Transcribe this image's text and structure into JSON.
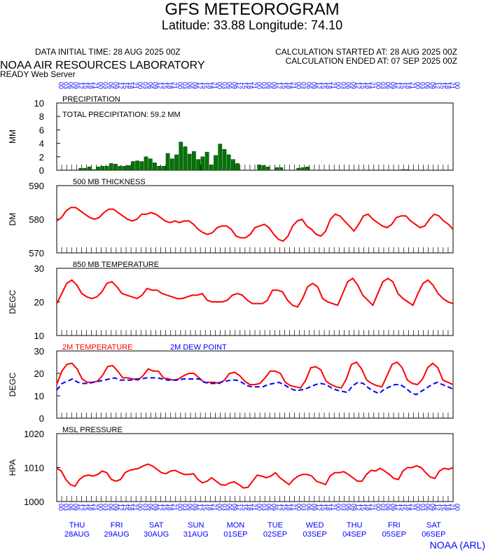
{
  "header": {
    "title": "GFS METEOROGRAM",
    "subtitle": "Latitude: 33.88 Longitude:  74.10",
    "initial_time": "DATA INITIAL TIME: 28 AUG 2025 00Z",
    "calc_started": "CALCULATION STARTED AT: 28 AUG 2025 00Z",
    "calc_ended": "CALCULATION ENDED AT: 07 SEP 2025 00Z",
    "lab": "NOAA AIR RESOURCES LABORATORY",
    "server": "READY Web Server"
  },
  "footer": {
    "credit": "NOAA (ARL)"
  },
  "colors": {
    "red": "#ff0000",
    "blue": "#0000ff",
    "green": "#007700",
    "axis": "#000000"
  },
  "x_axis": {
    "hours": [
      "00",
      "03",
      "06",
      "09",
      "12",
      "15",
      "18",
      "21"
    ],
    "days": [
      {
        "dow": "THU",
        "date": "28AUG"
      },
      {
        "dow": "FRI",
        "date": "29AUG"
      },
      {
        "dow": "SAT",
        "date": "30AUG"
      },
      {
        "dow": "SUN",
        "date": "31AUG"
      },
      {
        "dow": "MON",
        "date": "01SEP"
      },
      {
        "dow": "TUE",
        "date": "02SEP"
      },
      {
        "dow": "WED",
        "date": "03SEP"
      },
      {
        "dow": "THU",
        "date": "04SEP"
      },
      {
        "dow": "FRI",
        "date": "05SEP"
      },
      {
        "dow": "SAT",
        "date": "06SEP"
      }
    ]
  },
  "chart_data": [
    {
      "type": "bar",
      "title": "PRECIPITATION",
      "annotation": "TOTAL PRECIPITATION:  59.2 MM",
      "ylabel": "MM",
      "ylim": [
        0,
        10
      ],
      "yticks": [
        0,
        2,
        4,
        6,
        8,
        10
      ],
      "series": [
        {
          "name": "precipitation",
          "color": "#007700",
          "values": [
            0,
            0,
            0,
            0,
            0,
            0.3,
            0.3,
            0.5,
            0.1,
            0.5,
            0.6,
            0.6,
            1.0,
            0.9,
            0.6,
            0.6,
            0.7,
            1.3,
            1.4,
            1.3,
            2.0,
            1.7,
            1.1,
            0.6,
            0.6,
            2.5,
            1.7,
            2.3,
            4.2,
            3.5,
            2.4,
            2.8,
            1.6,
            2.0,
            2.7,
            0.8,
            2.2,
            3.9,
            3.1,
            2.3,
            1.6,
            1.0,
            0,
            0,
            0,
            0,
            0.8,
            0.7,
            0.5,
            0,
            0.4,
            0.4,
            0,
            0,
            0,
            0.3,
            0.4,
            0.5,
            0,
            0,
            0,
            0,
            0,
            0,
            0,
            0,
            0,
            0,
            0,
            0,
            0,
            0,
            0,
            0,
            0,
            0,
            0,
            0,
            0,
            0.1,
            0.1,
            0,
            0,
            0,
            0,
            0,
            0,
            0,
            0,
            0,
            0
          ]
        }
      ]
    },
    {
      "type": "line",
      "title": "500 MB  THICKNESS",
      "ylabel": "DM",
      "ylim": [
        570,
        590
      ],
      "yticks": [
        570,
        580,
        590
      ],
      "series": [
        {
          "name": "500 MB THICKNESS",
          "color": "#ff0000",
          "values": [
            579.5,
            580.5,
            582.5,
            583.5,
            583.5,
            582.5,
            581.5,
            580.5,
            580.0,
            580.5,
            582.0,
            583.0,
            583.0,
            582.0,
            581.0,
            580.0,
            579.5,
            580.0,
            581.5,
            581.5,
            582.0,
            581.5,
            580.5,
            579.5,
            579.0,
            579.5,
            579.0,
            579.5,
            579.5,
            578.5,
            577.0,
            576.0,
            575.5,
            576.0,
            577.5,
            578.0,
            578.0,
            577.0,
            575.0,
            574.5,
            574.5,
            575.5,
            577.5,
            578.0,
            578.5,
            577.5,
            575.5,
            574.0,
            573.5,
            575.0,
            578.0,
            579.5,
            580.0,
            578.0,
            577.0,
            575.5,
            575.0,
            576.5,
            580.0,
            581.5,
            581.0,
            579.5,
            578.0,
            576.5,
            578.5,
            581.0,
            581.5,
            580.0,
            579.0,
            578.0,
            577.5,
            578.5,
            580.5,
            581.0,
            581.0,
            579.5,
            578.5,
            577.5,
            578.0,
            580.0,
            581.5,
            581.0,
            579.5,
            578.5,
            577.0
          ]
        }
      ]
    },
    {
      "type": "line",
      "title": "850 MB  TEMPERATURE",
      "ylabel": "DEGC",
      "ylim": [
        10,
        30
      ],
      "yticks": [
        10,
        20,
        30
      ],
      "series": [
        {
          "name": "850 MB TEMPERATURE",
          "color": "#ff0000",
          "values": [
            19.5,
            22.5,
            25.5,
            26.5,
            25.0,
            22.5,
            21.5,
            21.0,
            21.5,
            23.0,
            25.5,
            26.0,
            24.5,
            22.5,
            22.0,
            21.5,
            21.0,
            22.0,
            24.0,
            23.5,
            23.5,
            22.5,
            22.0,
            21.5,
            21.0,
            21.0,
            21.5,
            22.0,
            22.0,
            22.5,
            20.5,
            20.0,
            20.0,
            20.0,
            20.5,
            22.0,
            22.5,
            22.0,
            20.5,
            19.5,
            19.5,
            19.5,
            20.5,
            23.5,
            23.5,
            23.0,
            20.5,
            19.0,
            18.5,
            21.0,
            24.5,
            25.5,
            24.5,
            21.0,
            20.0,
            19.5,
            19.0,
            22.5,
            26.0,
            27.0,
            25.0,
            22.0,
            20.5,
            19.0,
            22.5,
            26.0,
            27.0,
            26.0,
            22.5,
            21.0,
            20.0,
            19.0,
            22.5,
            25.5,
            26.5,
            25.0,
            22.5,
            21.0,
            20.0,
            19.5
          ]
        }
      ]
    },
    {
      "type": "line",
      "ylabel": "DEGC",
      "ylim": [
        0,
        30
      ],
      "yticks": [
        0,
        10,
        20,
        30
      ],
      "series": [
        {
          "name": "2M TEMPERATURE",
          "color": "#ff0000",
          "dash": false,
          "values": [
            15.0,
            21.0,
            24.0,
            24.5,
            22.0,
            17.5,
            16.0,
            16.0,
            16.5,
            19.0,
            23.0,
            23.5,
            21.0,
            18.0,
            18.0,
            17.5,
            17.0,
            19.0,
            22.0,
            21.0,
            21.0,
            18.0,
            17.5,
            17.0,
            17.5,
            19.0,
            20.0,
            20.0,
            18.0,
            16.0,
            16.0,
            16.0,
            15.5,
            17.0,
            20.0,
            20.5,
            19.0,
            16.5,
            15.0,
            15.0,
            15.5,
            18.0,
            21.0,
            21.0,
            20.0,
            16.0,
            14.5,
            14.0,
            13.5,
            17.0,
            22.5,
            23.0,
            21.5,
            16.5,
            15.0,
            14.0,
            13.5,
            17.5,
            24.0,
            25.0,
            22.0,
            17.0,
            15.5,
            14.5,
            14.0,
            19.0,
            24.0,
            25.0,
            22.5,
            17.0,
            15.5,
            15.0,
            17.5,
            22.5,
            24.5,
            22.5,
            17.0,
            16.0,
            15.0
          ]
        },
        {
          "name": "2M  DEW POINT",
          "color": "#0000ff",
          "dash": true,
          "values": [
            12.5,
            15.5,
            16.5,
            17.5,
            16.0,
            15.5,
            15.5,
            16.0,
            16.5,
            17.0,
            17.5,
            18.0,
            17.0,
            17.0,
            17.0,
            17.5,
            17.5,
            18.0,
            18.0,
            18.0,
            17.5,
            17.0,
            17.0,
            17.0,
            17.5,
            17.5,
            17.5,
            17.5,
            16.0,
            15.5,
            15.5,
            16.0,
            16.5,
            17.0,
            17.0,
            16.0,
            14.5,
            14.0,
            14.0,
            14.0,
            15.0,
            15.5,
            16.0,
            15.0,
            13.5,
            12.5,
            12.5,
            13.0,
            14.0,
            15.0,
            15.5,
            15.0,
            13.5,
            12.5,
            12.0,
            11.5,
            14.5,
            16.0,
            15.5,
            13.5,
            12.0,
            11.0,
            13.0,
            14.0,
            15.0,
            15.0,
            13.5,
            11.5,
            10.5,
            12.0,
            13.5,
            15.0,
            16.0,
            15.0,
            14.0,
            13.0
          ]
        }
      ]
    },
    {
      "type": "line",
      "title": "MSL PRESSURE",
      "ylabel": "HPA",
      "ylim": [
        1000,
        1020
      ],
      "yticks": [
        1000,
        1010,
        1020
      ],
      "series": [
        {
          "name": "MSL PRESSURE",
          "color": "#ff0000",
          "values": [
            1009.8,
            1009.0,
            1006.5,
            1005.0,
            1004.5,
            1006.5,
            1007.5,
            1007.8,
            1007.5,
            1008.0,
            1009.0,
            1008.5,
            1006.5,
            1006.0,
            1006.5,
            1008.5,
            1009.2,
            1009.5,
            1009.8,
            1010.5,
            1011.0,
            1010.5,
            1009.5,
            1008.5,
            1008.2,
            1009.0,
            1009.2,
            1008.5,
            1008.0,
            1008.0,
            1008.2,
            1006.5,
            1005.5,
            1006.0,
            1007.0,
            1006.0,
            1005.0,
            1004.8,
            1005.5,
            1005.8,
            1005.0,
            1004.0,
            1004.2,
            1006.0,
            1007.8,
            1007.5,
            1007.0,
            1007.5,
            1008.5,
            1007.0,
            1006.0,
            1005.0,
            1006.5,
            1007.5,
            1008.0,
            1008.0,
            1007.5,
            1006.0,
            1005.5,
            1005.0,
            1007.5,
            1008.5,
            1008.5,
            1008.8,
            1008.0,
            1007.0,
            1006.0,
            1006.0,
            1008.0,
            1009.2,
            1009.0,
            1009.8,
            1009.0,
            1008.0,
            1006.8,
            1006.5,
            1009.0,
            1010.0,
            1010.0,
            1010.5,
            1010.0,
            1008.5,
            1007.2,
            1006.8,
            1009.0,
            1009.8,
            1009.5,
            1010.0
          ]
        }
      ]
    }
  ],
  "legends": {
    "temp2m": {
      "label": "2M TEMPERATURE",
      "color": "#ff0000"
    },
    "dewpoint": {
      "label": "2M  DEW POINT",
      "color": "#0000ff"
    }
  }
}
